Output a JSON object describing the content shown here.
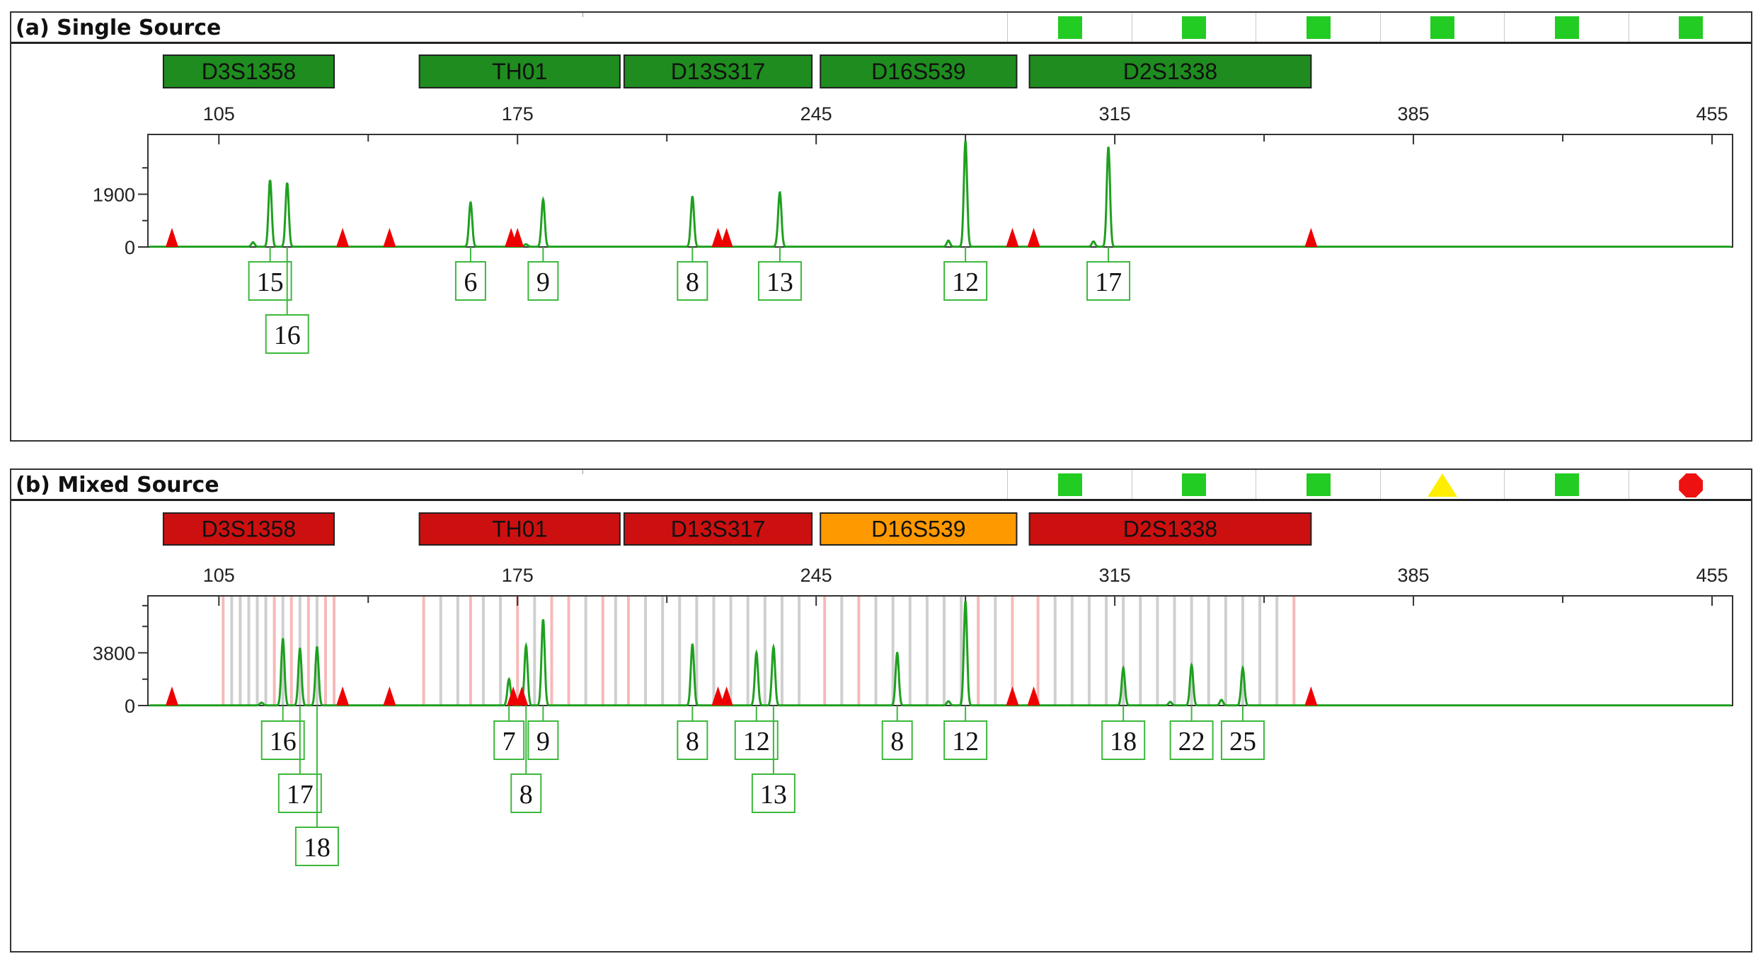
{
  "colors": {
    "trace": "#1fa01f",
    "marker_ok": "#1e8c1e",
    "marker_fail": "#cc1010",
    "marker_warn": "#ff9900",
    "status_green": "#22cc22",
    "status_yellow": "#ffee00",
    "status_red": "#ee1111",
    "ladder": "#ee0000",
    "allele_box": "#3cb83c",
    "bin_gray": "#cfcfcf",
    "bin_pink": "#f6b9b9"
  },
  "chart_data": [
    {
      "type": "line",
      "title": "(a) Single Source",
      "xlim": [
        75,
        460
      ],
      "x_ticks": [
        105,
        175,
        245,
        315,
        385,
        455
      ],
      "ylim": [
        0,
        3900
      ],
      "y_ticks": [
        0,
        1900
      ],
      "y_minor_ticks": [
        950,
        2850
      ],
      "status": [
        {
          "icon": "square",
          "color": "green"
        },
        {
          "icon": "square",
          "color": "green"
        },
        {
          "icon": "square",
          "color": "green"
        },
        {
          "icon": "square",
          "color": "green"
        },
        {
          "icon": "square",
          "color": "green"
        },
        {
          "icon": "square",
          "color": "green"
        }
      ],
      "markers": [
        {
          "name": "D3S1358",
          "start": 92,
          "end": 132,
          "status": "ok"
        },
        {
          "name": "TH01",
          "start": 152,
          "end": 199,
          "status": "ok"
        },
        {
          "name": "D13S317",
          "start": 200,
          "end": 244,
          "status": "ok"
        },
        {
          "name": "D16S539",
          "start": 246,
          "end": 292,
          "status": "ok"
        },
        {
          "name": "D2S1338",
          "start": 295,
          "end": 361,
          "status": "ok"
        }
      ],
      "ladder_peaks": [
        94,
        134,
        145,
        173.5,
        175,
        222,
        224,
        291,
        296,
        361
      ],
      "peaks": [
        {
          "x": 113,
          "h": 160
        },
        {
          "x": 117,
          "h": 2400
        },
        {
          "x": 121,
          "h": 2300
        },
        {
          "x": 164,
          "h": 1600
        },
        {
          "x": 177,
          "h": 90
        },
        {
          "x": 181,
          "h": 1700
        },
        {
          "x": 216,
          "h": 1800
        },
        {
          "x": 236,
          "h": 140
        },
        {
          "x": 236.5,
          "h": 1900
        },
        {
          "x": 276,
          "h": 220
        },
        {
          "x": 280,
          "h": 3800
        },
        {
          "x": 310,
          "h": 190
        },
        {
          "x": 313.5,
          "h": 3600
        }
      ],
      "alleles": [
        {
          "label": "15",
          "x": 117,
          "level": 0
        },
        {
          "label": "16",
          "x": 121,
          "level": 1
        },
        {
          "label": "6",
          "x": 164,
          "level": 0
        },
        {
          "label": "9",
          "x": 181,
          "level": 0
        },
        {
          "label": "8",
          "x": 216,
          "level": 0
        },
        {
          "label": "13",
          "x": 236.5,
          "level": 0
        },
        {
          "label": "12",
          "x": 280,
          "level": 0
        },
        {
          "label": "17",
          "x": 313.5,
          "level": 0
        }
      ],
      "bins": []
    },
    {
      "type": "line",
      "title": "(b) Mixed Source",
      "xlim": [
        75,
        460
      ],
      "x_ticks": [
        105,
        175,
        245,
        315,
        385,
        455
      ],
      "ylim": [
        0,
        7600
      ],
      "y_ticks": [
        0,
        3800
      ],
      "y_minor_ticks": [
        1900,
        5700,
        7200
      ],
      "status": [
        {
          "icon": "square",
          "color": "green"
        },
        {
          "icon": "square",
          "color": "green"
        },
        {
          "icon": "square",
          "color": "green"
        },
        {
          "icon": "triangle",
          "color": "yellow"
        },
        {
          "icon": "square",
          "color": "green"
        },
        {
          "icon": "octagon",
          "color": "red"
        }
      ],
      "markers": [
        {
          "name": "D3S1358",
          "start": 92,
          "end": 132,
          "status": "fail"
        },
        {
          "name": "TH01",
          "start": 152,
          "end": 199,
          "status": "fail"
        },
        {
          "name": "D13S317",
          "start": 200,
          "end": 244,
          "status": "fail"
        },
        {
          "name": "D16S539",
          "start": 246,
          "end": 292,
          "status": "warn"
        },
        {
          "name": "D2S1338",
          "start": 295,
          "end": 361,
          "status": "fail"
        }
      ],
      "ladder_peaks": [
        94,
        134,
        145,
        174,
        176,
        222,
        224,
        291,
        296,
        361
      ],
      "peaks": [
        {
          "x": 120,
          "h": 4800
        },
        {
          "x": 124,
          "h": 4100
        },
        {
          "x": 128,
          "h": 4200
        },
        {
          "x": 173,
          "h": 1900
        },
        {
          "x": 177,
          "h": 4300
        },
        {
          "x": 181,
          "h": 6200
        },
        {
          "x": 216,
          "h": 4400
        },
        {
          "x": 231,
          "h": 3800
        },
        {
          "x": 235,
          "h": 4200
        },
        {
          "x": 264,
          "h": 3800
        },
        {
          "x": 280,
          "h": 7500
        },
        {
          "x": 276,
          "h": 300
        },
        {
          "x": 317,
          "h": 2700
        },
        {
          "x": 333,
          "h": 2900
        },
        {
          "x": 345,
          "h": 2700
        },
        {
          "x": 115,
          "h": 200
        },
        {
          "x": 340,
          "h": 400
        },
        {
          "x": 328,
          "h": 250
        }
      ],
      "alleles": [
        {
          "label": "16",
          "x": 120,
          "level": 0
        },
        {
          "label": "17",
          "x": 124,
          "level": 1
        },
        {
          "label": "18",
          "x": 128,
          "level": 2
        },
        {
          "label": "7",
          "x": 173,
          "level": 0
        },
        {
          "label": "9",
          "x": 181,
          "level": 0
        },
        {
          "label": "8",
          "x": 177,
          "level": 1
        },
        {
          "label": "8",
          "x": 216,
          "level": 0
        },
        {
          "label": "12",
          "x": 231,
          "level": 0
        },
        {
          "label": "13",
          "x": 235,
          "level": 1
        },
        {
          "label": "8",
          "x": 264,
          "level": 0
        },
        {
          "label": "12",
          "x": 280,
          "level": 0
        },
        {
          "label": "18",
          "x": 317,
          "level": 0
        },
        {
          "label": "22",
          "x": 333,
          "level": 0
        },
        {
          "label": "25",
          "x": 345,
          "level": 0
        }
      ],
      "bins": [
        {
          "x": 106,
          "c": "pink"
        },
        {
          "x": 110,
          "c": "gray"
        },
        {
          "x": 114,
          "c": "gray"
        },
        {
          "x": 118,
          "c": "pink"
        },
        {
          "x": 122,
          "c": "pink"
        },
        {
          "x": 126,
          "c": "pink"
        },
        {
          "x": 130,
          "c": "pink"
        },
        {
          "x": 110,
          "c": "gray"
        },
        {
          "x": 108,
          "c": "gray"
        },
        {
          "x": 112,
          "c": "gray"
        },
        {
          "x": 116,
          "c": "gray"
        },
        {
          "x": 120,
          "c": "gray"
        },
        {
          "x": 124,
          "c": "gray"
        },
        {
          "x": 128,
          "c": "gray"
        },
        {
          "x": 132,
          "c": "pink"
        },
        {
          "x": 153,
          "c": "pink"
        },
        {
          "x": 157,
          "c": "gray"
        },
        {
          "x": 161,
          "c": "gray"
        },
        {
          "x": 164,
          "c": "pink"
        },
        {
          "x": 167,
          "c": "gray"
        },
        {
          "x": 171,
          "c": "gray"
        },
        {
          "x": 175,
          "c": "pink"
        },
        {
          "x": 179,
          "c": "gray"
        },
        {
          "x": 183,
          "c": "pink"
        },
        {
          "x": 187,
          "c": "pink"
        },
        {
          "x": 191,
          "c": "gray"
        },
        {
          "x": 195,
          "c": "pink"
        },
        {
          "x": 198,
          "c": "gray"
        },
        {
          "x": 201,
          "c": "pink"
        },
        {
          "x": 205,
          "c": "gray"
        },
        {
          "x": 209,
          "c": "gray"
        },
        {
          "x": 213,
          "c": "gray"
        },
        {
          "x": 217,
          "c": "gray"
        },
        {
          "x": 221,
          "c": "gray"
        },
        {
          "x": 225,
          "c": "gray"
        },
        {
          "x": 229,
          "c": "gray"
        },
        {
          "x": 233,
          "c": "gray"
        },
        {
          "x": 237,
          "c": "gray"
        },
        {
          "x": 241,
          "c": "gray"
        },
        {
          "x": 247,
          "c": "pink"
        },
        {
          "x": 251,
          "c": "gray"
        },
        {
          "x": 255,
          "c": "pink"
        },
        {
          "x": 259,
          "c": "gray"
        },
        {
          "x": 263,
          "c": "gray"
        },
        {
          "x": 267,
          "c": "gray"
        },
        {
          "x": 271,
          "c": "gray"
        },
        {
          "x": 275,
          "c": "gray"
        },
        {
          "x": 279,
          "c": "gray"
        },
        {
          "x": 283,
          "c": "pink"
        },
        {
          "x": 287,
          "c": "gray"
        },
        {
          "x": 291,
          "c": "pink"
        },
        {
          "x": 297,
          "c": "pink"
        },
        {
          "x": 301,
          "c": "gray"
        },
        {
          "x": 305,
          "c": "gray"
        },
        {
          "x": 309,
          "c": "gray"
        },
        {
          "x": 313,
          "c": "gray"
        },
        {
          "x": 317,
          "c": "gray"
        },
        {
          "x": 321,
          "c": "gray"
        },
        {
          "x": 325,
          "c": "gray"
        },
        {
          "x": 329,
          "c": "gray"
        },
        {
          "x": 333,
          "c": "gray"
        },
        {
          "x": 337,
          "c": "gray"
        },
        {
          "x": 341,
          "c": "gray"
        },
        {
          "x": 345,
          "c": "gray"
        },
        {
          "x": 349,
          "c": "gray"
        },
        {
          "x": 353,
          "c": "gray"
        },
        {
          "x": 357,
          "c": "pink"
        }
      ]
    }
  ]
}
